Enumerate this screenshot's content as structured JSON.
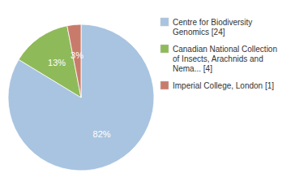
{
  "chart_data": {
    "type": "pie",
    "categories": [
      "Centre for Biodiversity\nGenomics [24]",
      "Canadian National Collection\nof Insects, Arachnids and\nNema... [4]",
      "Imperial College, London [1]"
    ],
    "values": [
      82,
      13,
      3
    ],
    "value_labels": [
      "82%",
      "13%",
      "3%"
    ],
    "colors": [
      "#a8c4e0",
      "#8fba5a",
      "#c97b6b"
    ],
    "data_labels": true,
    "legend": "right"
  }
}
